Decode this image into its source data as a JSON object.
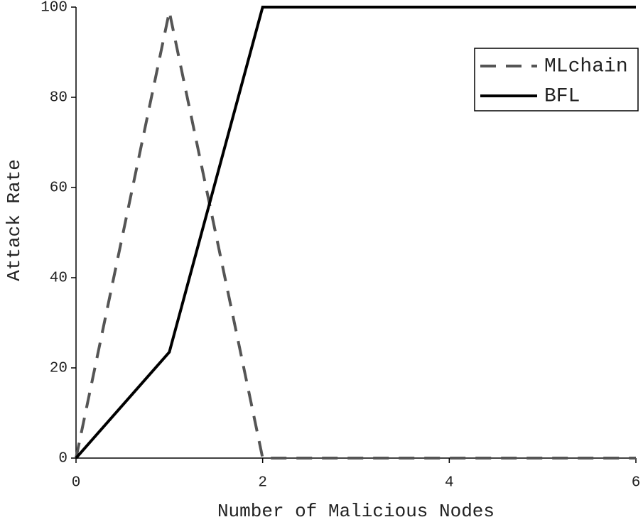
{
  "chart_data": {
    "type": "line",
    "x_label": "Number of Malicious Nodes",
    "y_label": "Attack Rate",
    "x": [
      0,
      1,
      2,
      3,
      4,
      5,
      6
    ],
    "series": [
      {
        "name": "MLchain",
        "color": "#555555",
        "dashed": true,
        "values": [
          0,
          99,
          0,
          0,
          0,
          0,
          0
        ]
      },
      {
        "name": "BFL",
        "color": "#000000",
        "dashed": false,
        "values": [
          0,
          23.5,
          100,
          100,
          100,
          100,
          100
        ]
      }
    ],
    "xlim": [
      0,
      6
    ],
    "xticks": [
      0,
      2,
      4,
      6
    ],
    "ylim": [
      0,
      100
    ],
    "yticks": [
      0,
      20,
      40,
      60,
      80,
      100
    ],
    "grid": false,
    "legend": "top-right"
  }
}
